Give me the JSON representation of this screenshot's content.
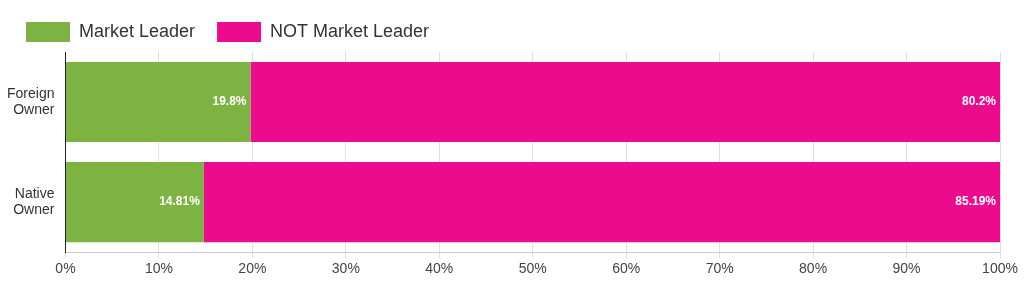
{
  "chart_data": {
    "type": "bar",
    "orientation": "horizontal",
    "stacked": true,
    "categories": [
      "Foreign Owner",
      "Native Owner"
    ],
    "series": [
      {
        "name": "Market Leader",
        "color": "#7cb342",
        "values": [
          19.8,
          14.81
        ],
        "value_labels": [
          "19.8%",
          "14.81%"
        ]
      },
      {
        "name": "NOT Market Leader",
        "color": "#ec0b8d",
        "values": [
          80.2,
          85.19
        ],
        "value_labels": [
          "80.2%",
          "85.19%"
        ]
      }
    ],
    "xlim": [
      0,
      100
    ],
    "xticks": [
      {
        "value": 0,
        "label": "0%"
      },
      {
        "value": 10,
        "label": "10%"
      },
      {
        "value": 20,
        "label": "20%"
      },
      {
        "value": 30,
        "label": "30%"
      },
      {
        "value": 40,
        "label": "40%"
      },
      {
        "value": 50,
        "label": "50%"
      },
      {
        "value": 60,
        "label": "60%"
      },
      {
        "value": 70,
        "label": "70%"
      },
      {
        "value": 80,
        "label": "80%"
      },
      {
        "value": 90,
        "label": "90%"
      },
      {
        "value": 100,
        "label": "100%"
      }
    ],
    "grid": true,
    "legend": "top-left",
    "data_labels": true
  }
}
